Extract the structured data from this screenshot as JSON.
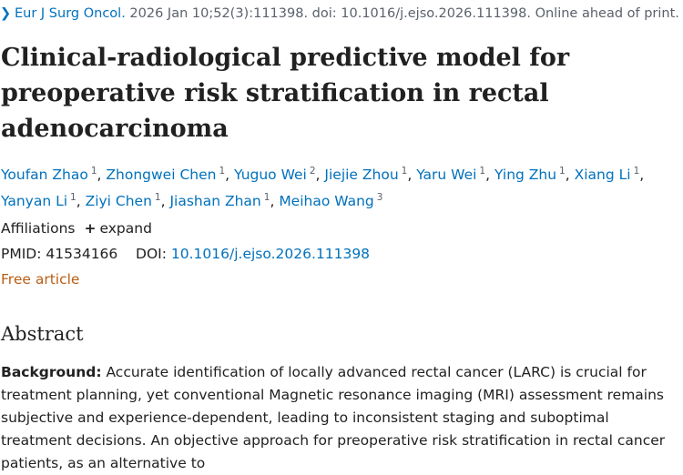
{
  "citation": {
    "journal": "Eur J Surg Oncol.",
    "details": "2026 Jan 10;52(3):111398. doi: 10.1016/j.ejso.2026.111398. Online ahead of print."
  },
  "article": {
    "title": "Clinical-radiological predictive model for preoperative risk stratification in rectal adenocarcinoma"
  },
  "authors": [
    {
      "name": "Youfan Zhao",
      "sup": "1"
    },
    {
      "name": "Zhongwei Chen",
      "sup": "1"
    },
    {
      "name": "Yuguo Wei",
      "sup": "2"
    },
    {
      "name": "Jiejie Zhou",
      "sup": "1"
    },
    {
      "name": "Yaru Wei",
      "sup": "1"
    },
    {
      "name": "Ying Zhu",
      "sup": "1"
    },
    {
      "name": "Xiang Li",
      "sup": "1"
    },
    {
      "name": "Yanyan Li",
      "sup": "1"
    },
    {
      "name": "Ziyi Chen",
      "sup": "1"
    },
    {
      "name": "Jiashan Zhan",
      "sup": "1"
    },
    {
      "name": "Meihao Wang",
      "sup": "3"
    }
  ],
  "affiliations": {
    "label": "Affiliations",
    "expand": "expand",
    "icon": "plus-icon"
  },
  "identifiers": {
    "pmid_label": "PMID:",
    "pmid": "41534166",
    "doi_label": "DOI:",
    "doi": "10.1016/j.ejso.2026.111398"
  },
  "free_article": "Free article",
  "abstract": {
    "heading": "Abstract",
    "background_label": "Background:",
    "background_text": "Accurate identification of locally advanced rectal cancer (LARC) is crucial for treatment planning, yet conventional Magnetic resonance imaging (MRI) assessment remains subjective and experience-dependent, leading to inconsistent staging and suboptimal treatment decisions. An objective approach for preoperative risk stratification in rectal cancer patients, as an alternative to"
  },
  "colors": {
    "link": "#0071bc",
    "free": "#bb5e14",
    "text": "#212121",
    "muted": "#5b616b"
  }
}
